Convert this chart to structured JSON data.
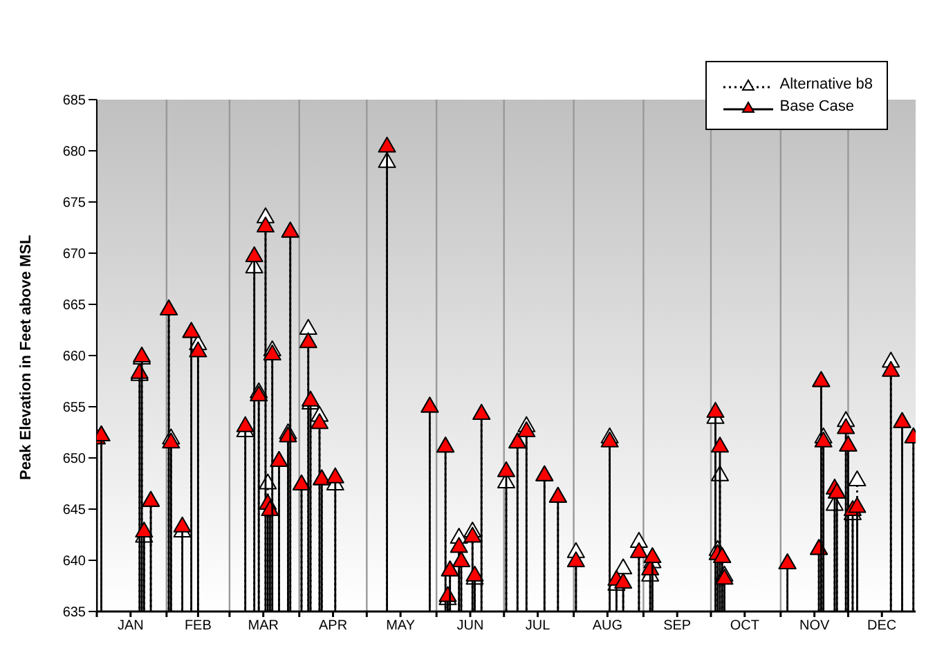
{
  "chart_data": {
    "type": "lollipop",
    "ylabel": "Peak Elevation in Feet above MSL",
    "x": [
      "--01-01",
      "--01-03",
      "--01-20",
      "--01-21",
      "--01-22",
      "--01-25",
      "--02-02",
      "--02-03",
      "--02-08",
      "--02-12",
      "--02-15",
      "--03-08",
      "--03-12",
      "--03-14",
      "--03-17",
      "--03-18",
      "--03-19",
      "--03-20",
      "--03-23",
      "--03-27",
      "--03-28",
      "--04-02",
      "--04-05",
      "--04-06",
      "--04-10",
      "--04-11",
      "--04-17",
      "--05-10",
      "--05-29",
      "--06-05",
      "--06-06",
      "--06-07",
      "--06-11",
      "--06-12",
      "--06-17",
      "--06-18",
      "--06-21",
      "--07-02",
      "--07-07",
      "--07-11",
      "--07-19",
      "--07-25",
      "--08-02",
      "--08-17",
      "--08-20",
      "--08-23",
      "--08-30",
      "--09-04",
      "--09-05",
      "--10-03",
      "--10-04",
      "--10-05",
      "--10-06",
      "--10-07",
      "--11-04",
      "--11-18",
      "--11-19",
      "--11-20",
      "--11-25",
      "--11-26",
      "--11-30",
      "--12-01",
      "--12-03",
      "--12-05",
      "--12-20",
      "--12-25",
      "--12-30"
    ],
    "series": [
      {
        "name": "Alternative b8",
        "color": "#ffffff",
        "line_style": "dotted",
        "values": [
          null,
          652.3,
          658.2,
          659.8,
          642.4,
          645.9,
          664.6,
          652.0,
          642.9,
          662.4,
          661.2,
          652.7,
          668.7,
          656.5,
          673.6,
          647.6,
          null,
          660.6,
          649.8,
          652.5,
          672.2,
          647.5,
          662.7,
          655.4,
          654.2,
          648.0,
          647.5,
          679.0,
          655.1,
          651.2,
          636.3,
          639.1,
          642.3,
          640.0,
          642.9,
          638.3,
          654.4,
          647.7,
          651.6,
          653.2,
          648.4,
          646.3,
          640.9,
          652.1,
          637.7,
          639.3,
          641.9,
          638.6,
          639.9,
          654.0,
          641.1,
          648.4,
          640.4,
          638.6,
          639.8,
          641.2,
          657.6,
          652.1,
          645.5,
          646.7,
          653.7,
          651.3,
          644.6,
          647.9,
          659.5,
          653.6,
          652.1
        ]
      },
      {
        "name": "Base Case",
        "color": "#ff0000",
        "line_style": "solid",
        "values": [
          652.0,
          652.3,
          658.4,
          660.0,
          642.9,
          645.9,
          664.6,
          651.6,
          643.4,
          662.4,
          660.5,
          653.2,
          669.8,
          656.2,
          672.7,
          645.6,
          645.0,
          660.2,
          649.8,
          652.2,
          672.2,
          647.5,
          661.4,
          655.7,
          653.5,
          648.0,
          648.2,
          680.5,
          655.1,
          651.2,
          636.6,
          639.1,
          641.4,
          640.0,
          642.4,
          638.6,
          654.4,
          648.8,
          651.6,
          652.7,
          648.4,
          646.3,
          640.0,
          651.7,
          638.2,
          637.9,
          640.9,
          639.2,
          640.4,
          654.6,
          640.7,
          651.2,
          640.4,
          638.3,
          639.8,
          641.2,
          657.6,
          651.7,
          647.1,
          646.7,
          653.0,
          651.3,
          645.0,
          645.3,
          658.6,
          653.6,
          652.1
        ]
      }
    ],
    "xlim": [
      "--01-01",
      "--12-31"
    ],
    "xticks": [
      {
        "value": "--01-01",
        "label": null
      },
      {
        "value": "--01-16",
        "label": "JAN"
      },
      {
        "value": "--02-01",
        "label": null
      },
      {
        "value": "--02-15",
        "label": "FEB"
      },
      {
        "value": "--03-01",
        "label": null
      },
      {
        "value": "--03-16",
        "label": "MAR"
      },
      {
        "value": "--04-01",
        "label": null
      },
      {
        "value": "--04-16",
        "label": "APR"
      },
      {
        "value": "--05-01",
        "label": null
      },
      {
        "value": "--05-16",
        "label": "MAY"
      },
      {
        "value": "--06-01",
        "label": null
      },
      {
        "value": "--06-16",
        "label": "JUN"
      },
      {
        "value": "--07-01",
        "label": null
      },
      {
        "value": "--07-16",
        "label": "JUL"
      },
      {
        "value": "--08-01",
        "label": null
      },
      {
        "value": "--08-16",
        "label": "AUG"
      },
      {
        "value": "--09-01",
        "label": null
      },
      {
        "value": "--09-16",
        "label": "SEP"
      },
      {
        "value": "--10-01",
        "label": null
      },
      {
        "value": "--10-16",
        "label": "OCT"
      },
      {
        "value": "--11-01",
        "label": null
      },
      {
        "value": "--11-16",
        "label": "NOV"
      },
      {
        "value": "--12-01",
        "label": null
      },
      {
        "value": "--12-16",
        "label": "DEC"
      }
    ],
    "ylim": [
      635,
      685
    ],
    "yticks": [
      635,
      640,
      645,
      650,
      655,
      660,
      665,
      670,
      675,
      680,
      685
    ],
    "grid": true,
    "legend": "top right",
    "marker": "triangle"
  }
}
